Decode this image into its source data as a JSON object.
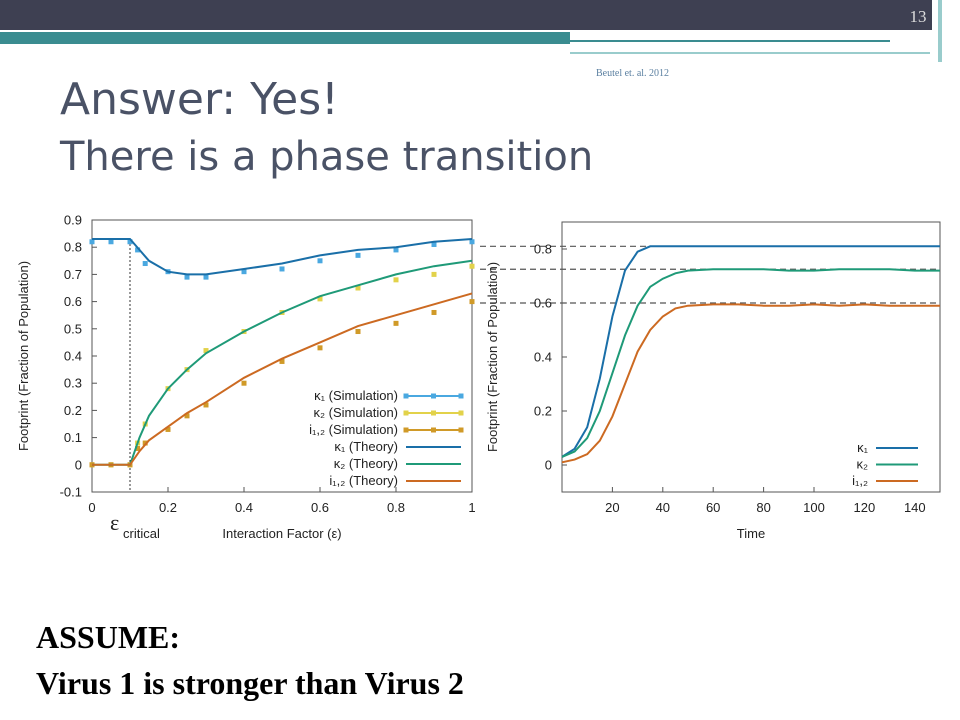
{
  "slide": {
    "number": "13",
    "citation": "Beutel et. al. 2012",
    "title": "Answer: Yes!",
    "subtitle": "There is a phase transition",
    "assume": "ASSUME:",
    "statement": "Virus 1 is stronger than Virus 2"
  },
  "chart_data": [
    {
      "type": "line",
      "x_label": "Interaction Factor (ε)",
      "y_label": "Footprint (Fraction of Population)",
      "xlim": [
        0,
        1
      ],
      "xticks": [
        0,
        0.2,
        0.4,
        0.6,
        0.8,
        1
      ],
      "ylim": [
        -0.1,
        0.9
      ],
      "yticks": [
        -0.1,
        0,
        0.1,
        0.2,
        0.3,
        0.4,
        0.5,
        0.6,
        0.7,
        0.8,
        0.9
      ],
      "legend": "bottom-right",
      "annotations": [
        {
          "x": 0.1,
          "text": "ε",
          "subscript": "critical"
        }
      ],
      "series": [
        {
          "name": "κ₁ (Simulation)",
          "color": "#4aa8e0",
          "mode": "markers",
          "x": [
            0,
            0.05,
            0.1,
            0.12,
            0.14,
            0.2,
            0.25,
            0.3,
            0.4,
            0.5,
            0.6,
            0.7,
            0.8,
            0.9,
            1
          ],
          "values": [
            0.82,
            0.82,
            0.82,
            0.79,
            0.74,
            0.71,
            0.69,
            0.69,
            0.71,
            0.72,
            0.75,
            0.77,
            0.79,
            0.81,
            0.82
          ]
        },
        {
          "name": "κ₂ (Simulation)",
          "color": "#e2d24a",
          "mode": "markers",
          "x": [
            0,
            0.05,
            0.1,
            0.12,
            0.14,
            0.2,
            0.25,
            0.3,
            0.4,
            0.5,
            0.6,
            0.7,
            0.8,
            0.9,
            1
          ],
          "values": [
            0,
            0,
            0,
            0.08,
            0.15,
            0.28,
            0.35,
            0.42,
            0.49,
            0.56,
            0.61,
            0.65,
            0.68,
            0.7,
            0.73
          ]
        },
        {
          "name": "i₁,₂ (Simulation)",
          "color": "#d09a28",
          "mode": "markers",
          "x": [
            0,
            0.05,
            0.1,
            0.12,
            0.14,
            0.2,
            0.25,
            0.3,
            0.4,
            0.5,
            0.6,
            0.7,
            0.8,
            0.9,
            1
          ],
          "values": [
            0,
            0,
            0,
            0.06,
            0.08,
            0.13,
            0.18,
            0.22,
            0.3,
            0.38,
            0.43,
            0.49,
            0.52,
            0.56,
            0.6
          ]
        },
        {
          "name": "κ₁ (Theory)",
          "color": "#1a6fa8",
          "mode": "lines",
          "x": [
            0,
            0.05,
            0.1,
            0.125,
            0.15,
            0.2,
            0.25,
            0.3,
            0.4,
            0.5,
            0.6,
            0.7,
            0.8,
            0.9,
            1
          ],
          "values": [
            0.83,
            0.83,
            0.83,
            0.79,
            0.75,
            0.71,
            0.7,
            0.7,
            0.72,
            0.74,
            0.77,
            0.79,
            0.8,
            0.82,
            0.83
          ]
        },
        {
          "name": "κ₂ (Theory)",
          "color": "#1f9a78",
          "mode": "lines",
          "x": [
            0,
            0.05,
            0.1,
            0.125,
            0.15,
            0.2,
            0.25,
            0.3,
            0.4,
            0.5,
            0.6,
            0.7,
            0.8,
            0.9,
            1
          ],
          "values": [
            0,
            0,
            0,
            0.1,
            0.18,
            0.28,
            0.35,
            0.41,
            0.49,
            0.56,
            0.62,
            0.66,
            0.7,
            0.73,
            0.75
          ]
        },
        {
          "name": "i₁,₂ (Theory)",
          "color": "#cc6a22",
          "mode": "lines",
          "x": [
            0,
            0.05,
            0.1,
            0.125,
            0.15,
            0.2,
            0.25,
            0.3,
            0.4,
            0.5,
            0.6,
            0.7,
            0.8,
            0.9,
            1
          ],
          "values": [
            0,
            0,
            0,
            0.05,
            0.09,
            0.14,
            0.19,
            0.23,
            0.32,
            0.39,
            0.45,
            0.51,
            0.55,
            0.59,
            0.63
          ]
        }
      ]
    },
    {
      "type": "line",
      "x_label": "Time",
      "y_label": "Footprint (Fraction of Population)",
      "xlim": [
        0,
        150
      ],
      "xticks": [
        20,
        40,
        60,
        80,
        100,
        120,
        140
      ],
      "ylim": [
        -0.1,
        0.9
      ],
      "yticks": [
        0,
        0.2,
        0.4,
        0.6,
        0.8
      ],
      "legend": "bottom-right",
      "hlines": [
        0.81,
        0.725,
        0.6
      ],
      "series": [
        {
          "name": "κ₁",
          "color": "#1a6fa8",
          "mode": "lines",
          "x": [
            0,
            5,
            10,
            15,
            20,
            25,
            30,
            35,
            40,
            45,
            50,
            60,
            70,
            80,
            90,
            100,
            110,
            120,
            130,
            140,
            150
          ],
          "values": [
            0.03,
            0.06,
            0.14,
            0.32,
            0.55,
            0.72,
            0.79,
            0.81,
            0.81,
            0.81,
            0.81,
            0.81,
            0.81,
            0.81,
            0.81,
            0.81,
            0.81,
            0.81,
            0.81,
            0.81,
            0.81
          ]
        },
        {
          "name": "κ₂",
          "color": "#1f9a78",
          "mode": "lines",
          "x": [
            0,
            5,
            10,
            15,
            20,
            25,
            30,
            35,
            40,
            45,
            50,
            60,
            70,
            80,
            90,
            100,
            110,
            120,
            130,
            140,
            150
          ],
          "values": [
            0.03,
            0.05,
            0.1,
            0.2,
            0.34,
            0.48,
            0.59,
            0.66,
            0.69,
            0.71,
            0.72,
            0.725,
            0.725,
            0.725,
            0.72,
            0.72,
            0.725,
            0.725,
            0.725,
            0.72,
            0.72
          ]
        },
        {
          "name": "i₁,₂",
          "color": "#cc6a22",
          "mode": "lines",
          "x": [
            0,
            5,
            10,
            15,
            20,
            25,
            30,
            35,
            40,
            45,
            50,
            60,
            70,
            80,
            90,
            100,
            110,
            120,
            130,
            140,
            150
          ],
          "values": [
            0.01,
            0.02,
            0.04,
            0.09,
            0.18,
            0.3,
            0.42,
            0.5,
            0.55,
            0.58,
            0.59,
            0.595,
            0.595,
            0.59,
            0.59,
            0.595,
            0.59,
            0.595,
            0.59,
            0.59,
            0.59
          ]
        }
      ]
    }
  ]
}
